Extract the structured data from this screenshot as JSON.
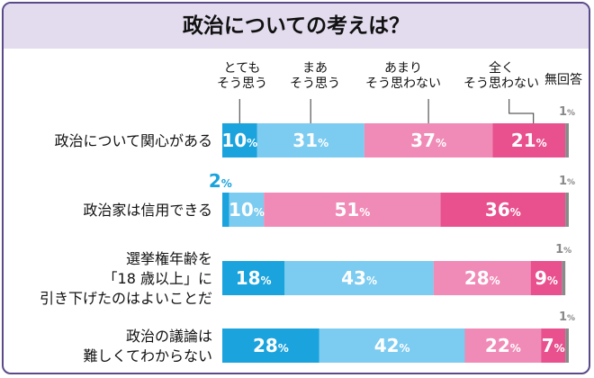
{
  "title": "政治についての考えは？",
  "chart_data": {
    "type": "bar",
    "stacked": true,
    "orientation": "horizontal",
    "legend": [
      {
        "lines": [
          "とても",
          "そう思う"
        ]
      },
      {
        "lines": [
          "まあ",
          "そう思う"
        ]
      },
      {
        "lines": [
          "あまり",
          "そう思わない"
        ]
      },
      {
        "lines": [
          "全く",
          "そう思わない"
        ]
      },
      {
        "lines": [
          "無回答"
        ]
      }
    ],
    "categories": [
      {
        "lines": [
          "政治について関心がある"
        ]
      },
      {
        "lines": [
          "政治家は信用できる"
        ]
      },
      {
        "lines": [
          "選挙権年齢を",
          "「18 歳以上」に",
          "引き下げたのはよいことだ"
        ]
      },
      {
        "lines": [
          "政治の議論は",
          "難しくてわからない"
        ]
      }
    ],
    "series": [
      {
        "values": [
          10,
          2,
          18,
          28
        ],
        "color": "#1aa3dc"
      },
      {
        "values": [
          31,
          10,
          43,
          42
        ],
        "color": "#7ccbf0"
      },
      {
        "values": [
          37,
          51,
          28,
          22
        ],
        "color": "#f08ab6"
      },
      {
        "values": [
          21,
          36,
          9,
          7
        ],
        "color": "#e8508e"
      },
      {
        "values": [
          1,
          1,
          1,
          1
        ],
        "color": "#8a8a8a"
      }
    ],
    "unit": "%",
    "xlim": [
      0,
      100
    ]
  }
}
